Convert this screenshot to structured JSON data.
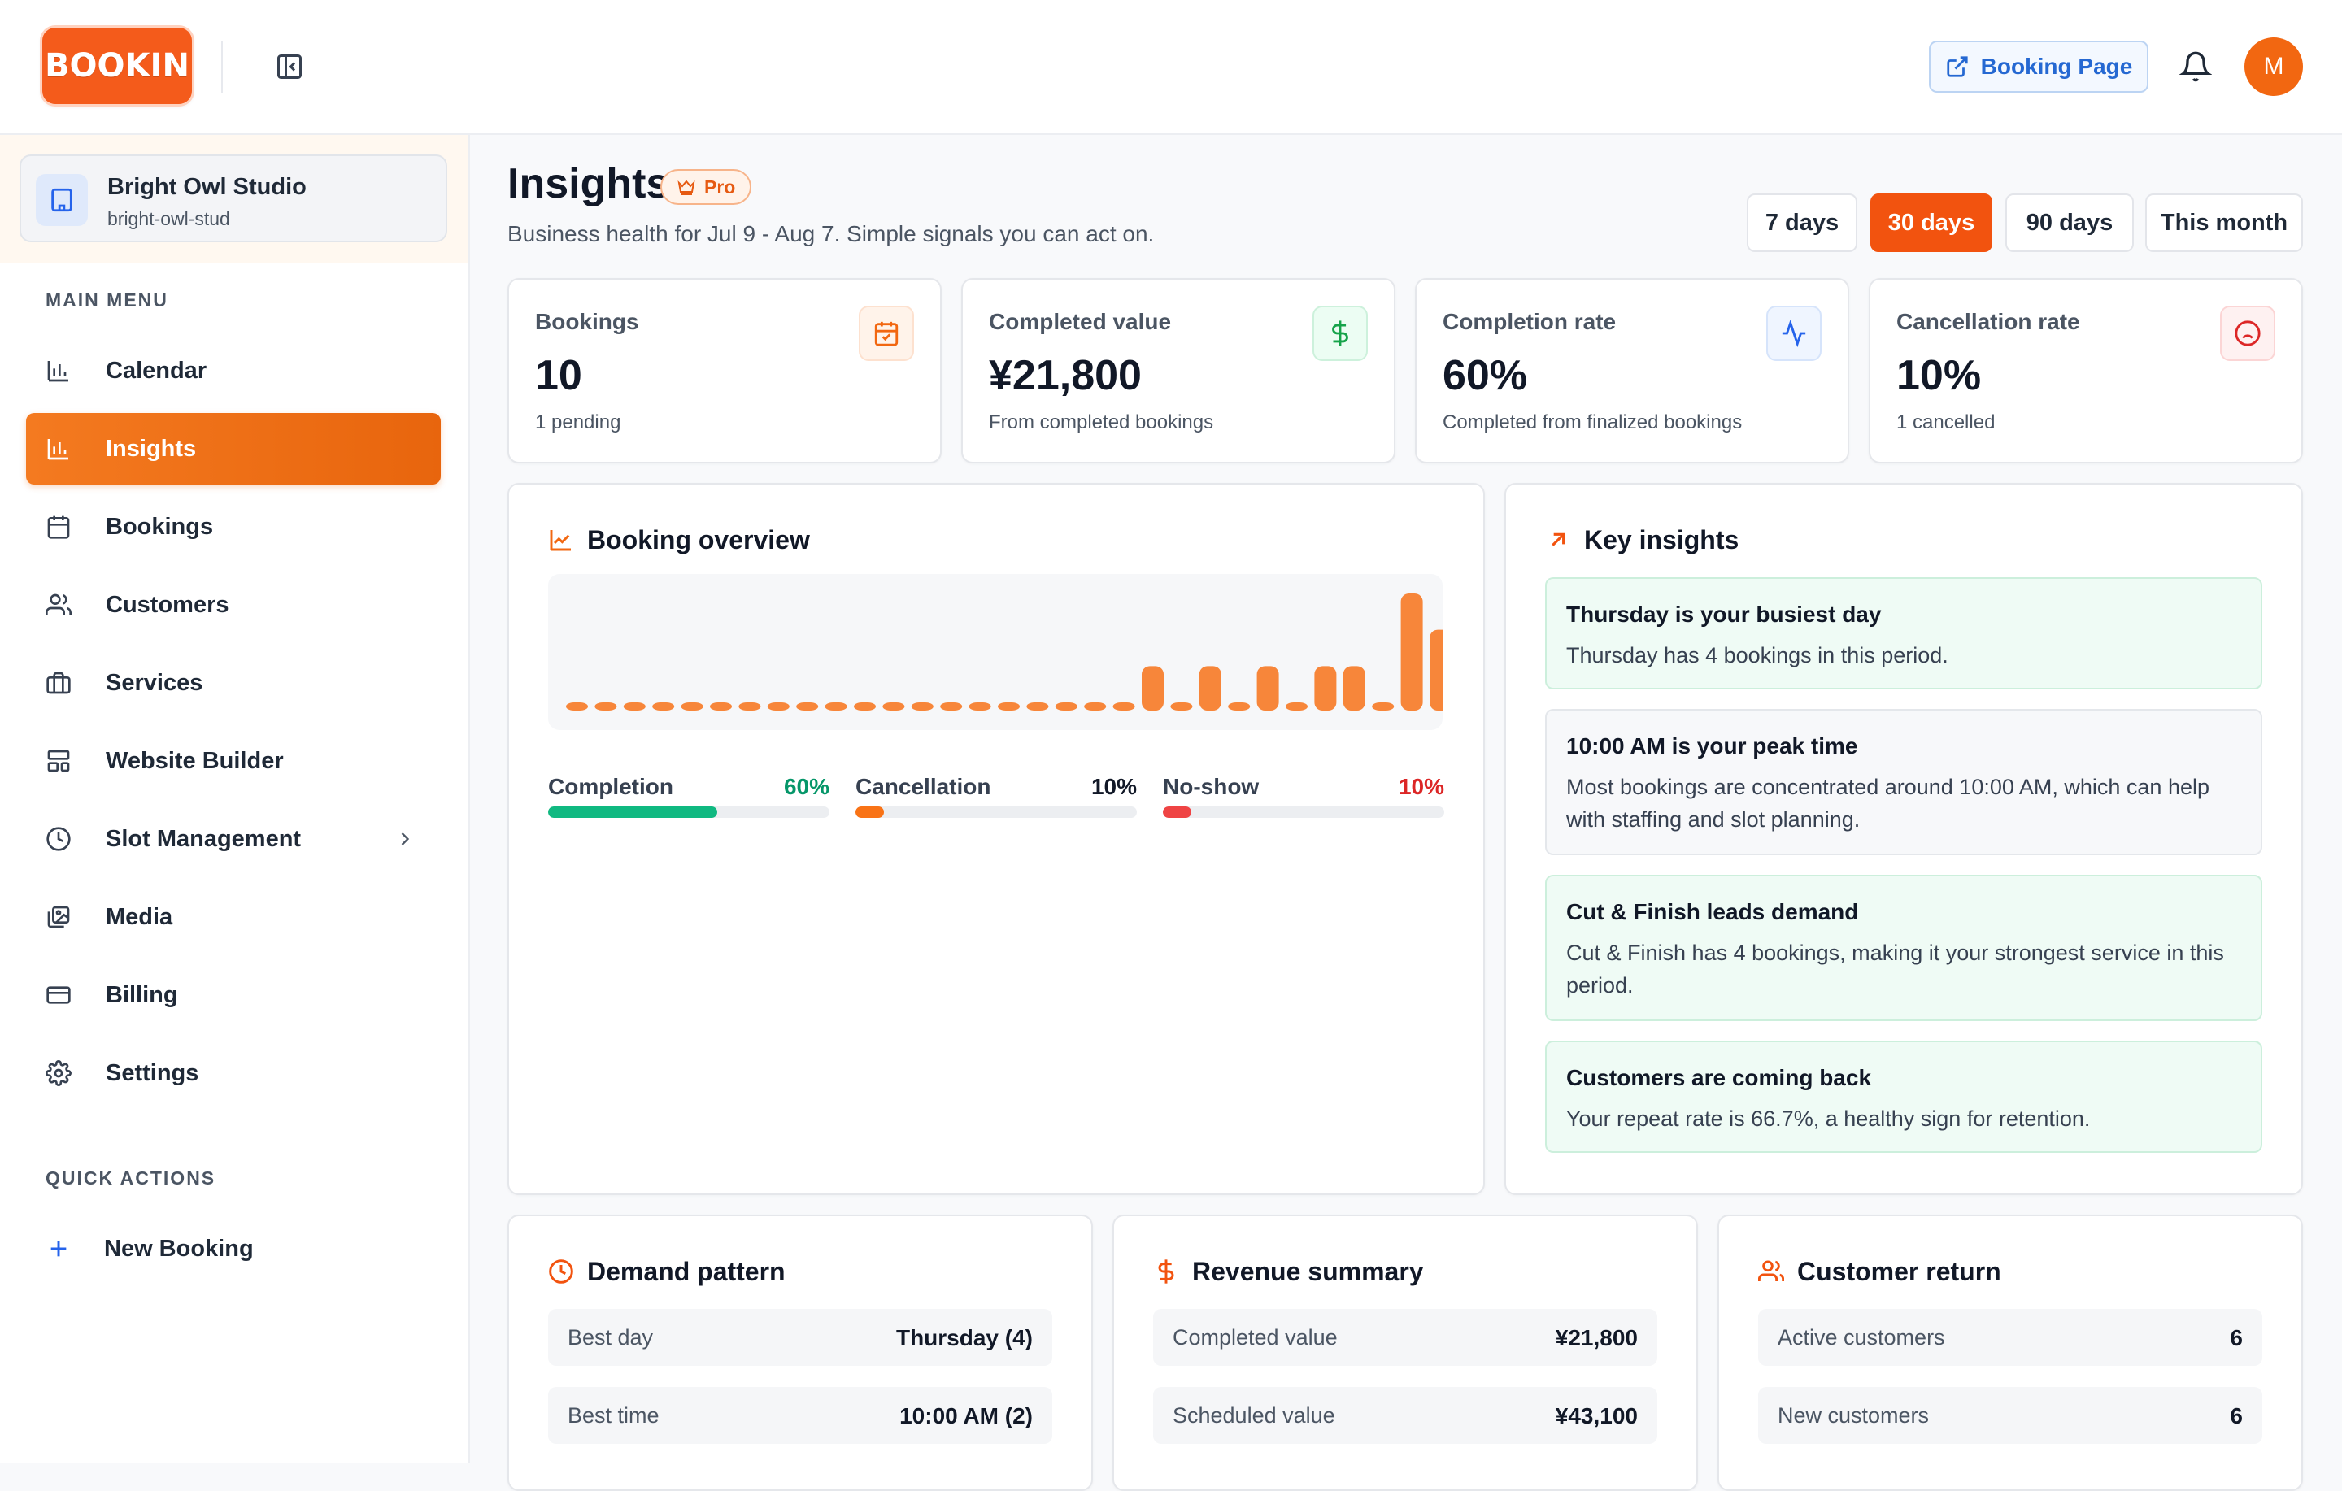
{
  "brand": {
    "logo_text": "BOOKIN",
    "accent": "#f2530f"
  },
  "header": {
    "booking_page_label": "Booking Page",
    "avatar_initial": "M"
  },
  "studio": {
    "name": "Bright Owl Studio",
    "slug": "bright-owl-stud"
  },
  "sidebar": {
    "main_menu_label": "MAIN MENU",
    "items": [
      {
        "label": "Calendar",
        "icon": "bar-chart-icon"
      },
      {
        "label": "Insights",
        "icon": "bar-chart-icon",
        "active": true
      },
      {
        "label": "Bookings",
        "icon": "calendar-icon"
      },
      {
        "label": "Customers",
        "icon": "users-icon"
      },
      {
        "label": "Services",
        "icon": "briefcase-icon"
      },
      {
        "label": "Website Builder",
        "icon": "layout-icon"
      },
      {
        "label": "Slot Management",
        "icon": "clock-icon"
      },
      {
        "label": "Media",
        "icon": "image-icon"
      },
      {
        "label": "Billing",
        "icon": "credit-card-icon"
      },
      {
        "label": "Settings",
        "icon": "gear-icon"
      }
    ],
    "quick_actions_label": "QUICK ACTIONS",
    "new_booking_label": "New Booking"
  },
  "page": {
    "title": "Insights",
    "badge": "Pro",
    "subtitle": "Business health for Jul 9 - Aug 7. Simple signals you can act on.",
    "ranges": [
      "7 days",
      "30 days",
      "90 days",
      "This month"
    ],
    "active_range": "30 days"
  },
  "stats": [
    {
      "label": "Bookings",
      "value": "10",
      "sub": "1 pending",
      "icon": "calendar-check-icon",
      "color": "#f26711"
    },
    {
      "label": "Completed value",
      "value": "¥21,800",
      "sub": "From completed bookings",
      "icon": "dollar-icon",
      "color": "#16a34a"
    },
    {
      "label": "Completion rate",
      "value": "60%",
      "sub": "Completed from finalized bookings",
      "icon": "activity-icon",
      "color": "#2563eb"
    },
    {
      "label": "Cancellation rate",
      "value": "10%",
      "sub": "1 cancelled",
      "icon": "frown-icon",
      "color": "#dc2626"
    }
  ],
  "overview": {
    "title": "Booking overview",
    "metrics": [
      {
        "label": "Completion",
        "value": "60%",
        "fraction": 0.6,
        "color": "#10b981",
        "value_color": "#059669"
      },
      {
        "label": "Cancellation",
        "value": "10%",
        "fraction": 0.1,
        "color": "#f97316",
        "value_color": "#111827"
      },
      {
        "label": "No-show",
        "value": "10%",
        "fraction": 0.1,
        "color": "#ef4444",
        "value_color": "#dc2626"
      }
    ]
  },
  "chart_data": {
    "type": "bar",
    "values": [
      0,
      0,
      0,
      0,
      0,
      0,
      0,
      0,
      0,
      0,
      0,
      0,
      0,
      0,
      0,
      0,
      0,
      0,
      0,
      0,
      1,
      0,
      1,
      0,
      1,
      0,
      1,
      1,
      0,
      3,
      2
    ],
    "color": "#f7863a"
  },
  "insights": {
    "title": "Key insights",
    "items": [
      {
        "title": "Thursday is your busiest day",
        "text": "Thursday has 4 bookings in this period.",
        "tone": "green"
      },
      {
        "title": "10:00 AM is your peak time",
        "text": "Most bookings are concentrated around 10:00 AM, which can help with staffing and slot planning.",
        "tone": "gray"
      },
      {
        "title": "Cut & Finish leads demand",
        "text": "Cut & Finish has 4 bookings, making it your strongest service in this period.",
        "tone": "green"
      },
      {
        "title": "Customers are coming back",
        "text": "Your repeat rate is 66.7%, a healthy sign for retention.",
        "tone": "green"
      }
    ]
  },
  "demand": {
    "title": "Demand pattern",
    "rows": [
      {
        "label": "Best day",
        "value": "Thursday (4)"
      },
      {
        "label": "Best time",
        "value": "10:00 AM (2)"
      }
    ]
  },
  "revenue": {
    "title": "Revenue summary",
    "rows": [
      {
        "label": "Completed value",
        "value": "¥21,800"
      },
      {
        "label": "Scheduled value",
        "value": "¥43,100"
      }
    ]
  },
  "customer_return": {
    "title": "Customer return",
    "rows": [
      {
        "label": "Active customers",
        "value": "6"
      },
      {
        "label": "New customers",
        "value": "6"
      }
    ]
  }
}
